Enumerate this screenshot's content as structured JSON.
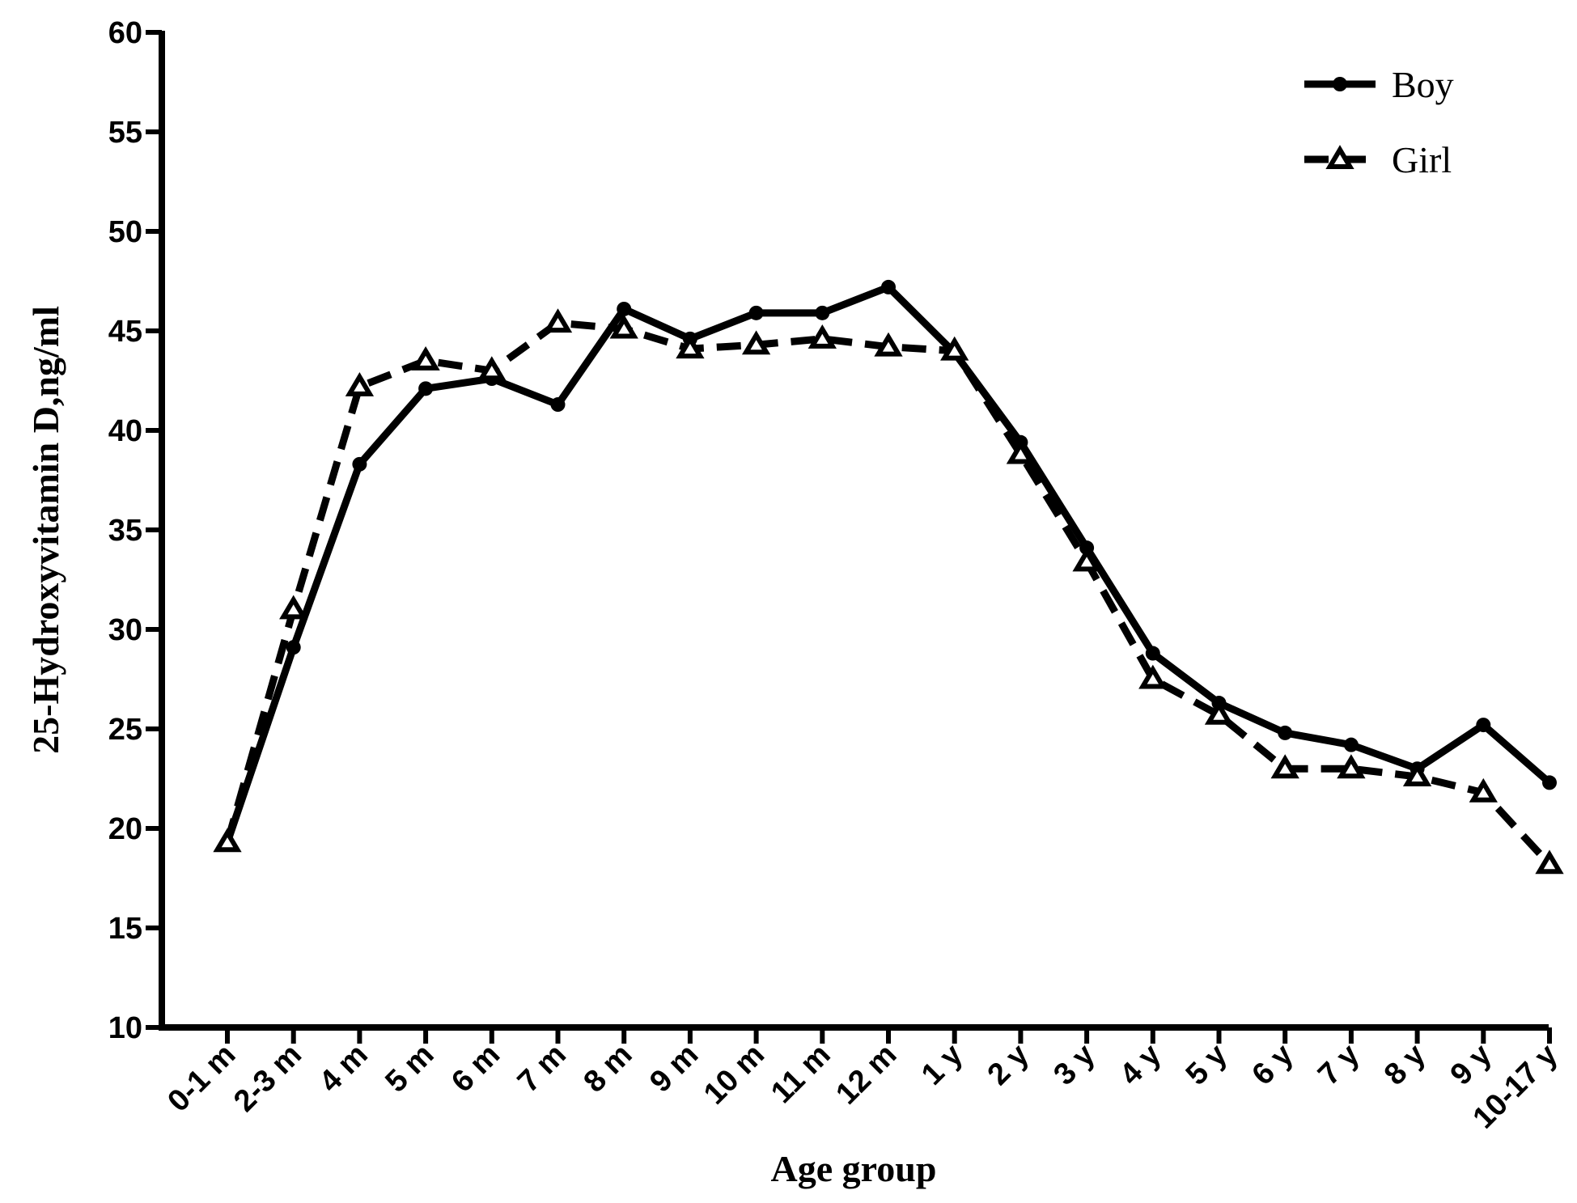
{
  "chart_data": {
    "type": "line",
    "xlabel": "Age group",
    "ylabel": "25-Hydroxyvitamin D,ng/ml",
    "ylim": [
      10,
      60
    ],
    "yticks": [
      10,
      15,
      20,
      25,
      30,
      35,
      40,
      45,
      50,
      55,
      60
    ],
    "grid": false,
    "legend_position": "top-right",
    "categories": [
      "0-1 m",
      "2-3 m",
      "4 m",
      "5 m",
      "6 m",
      "7 m",
      "8 m",
      "9 m",
      "10 m",
      "11 m",
      "12 m",
      "1 y",
      "2 y",
      "3 y",
      "4 y",
      "5 y",
      "6 y",
      "7 y",
      "8 y",
      "9 y",
      "10-17 y"
    ],
    "series": [
      {
        "name": "Boy",
        "line_style": "solid",
        "marker": "circle",
        "color": "#000000",
        "values": [
          19.3,
          29.1,
          38.3,
          42.1,
          42.6,
          41.3,
          46.1,
          44.6,
          45.9,
          45.9,
          47.2,
          43.9,
          39.4,
          34.1,
          28.8,
          26.3,
          24.8,
          24.2,
          23.0,
          25.2,
          22.3
        ]
      },
      {
        "name": "Girl",
        "line_style": "dashed",
        "marker": "triangle",
        "color": "#000000",
        "values": [
          19.3,
          31.0,
          42.2,
          43.5,
          43.0,
          45.4,
          45.1,
          44.1,
          44.3,
          44.6,
          44.2,
          44.0,
          38.8,
          33.4,
          27.5,
          25.7,
          23.0,
          23.0,
          22.6,
          21.8,
          18.2
        ]
      }
    ]
  }
}
